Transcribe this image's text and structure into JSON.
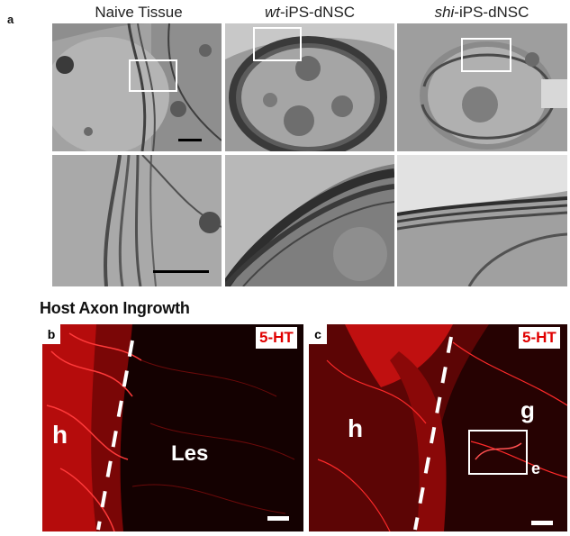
{
  "panel_a": {
    "letter": "a",
    "columns": [
      {
        "prefix": "",
        "suffix": "Naive Tissue"
      },
      {
        "prefix": "wt",
        "suffix": "-iPS-dNSC"
      },
      {
        "prefix": "shi",
        "suffix": "-iPS-dNSC"
      }
    ]
  },
  "section": {
    "title": "Host Axon Ingrowth"
  },
  "panel_b": {
    "letter": "b",
    "marker": "5-HT",
    "label_h": "h",
    "label_les": "Les"
  },
  "panel_c": {
    "letter": "c",
    "marker": "5-HT",
    "label_h": "h",
    "label_g": "g",
    "label_e": "e"
  },
  "colors": {
    "marker_text": "#e00000",
    "fluorescence": "#ff1a1a",
    "em_gray": "#8c8c8c"
  }
}
